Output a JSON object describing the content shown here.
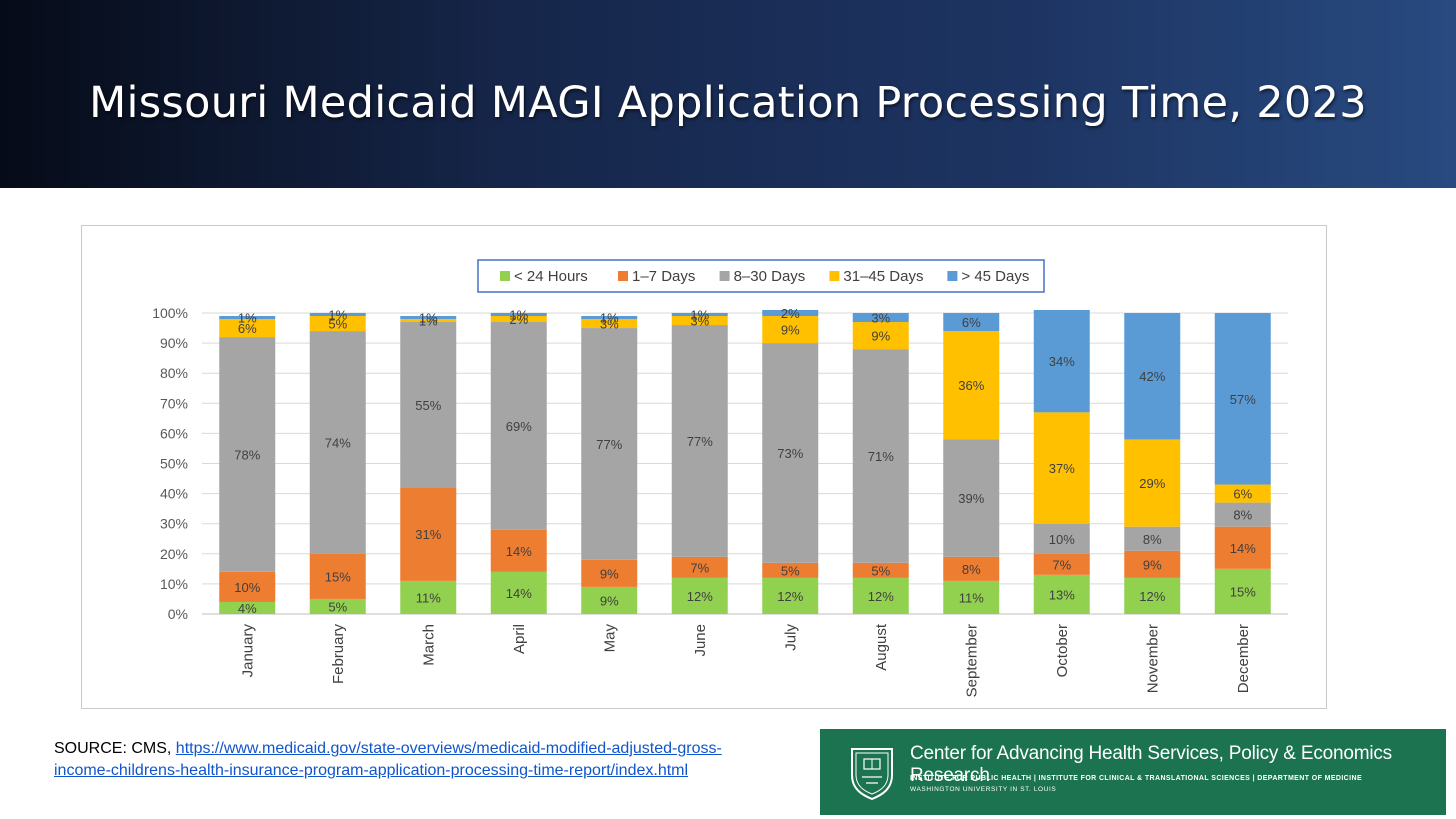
{
  "slide": {
    "title": "Missouri Medicaid MAGI Application Processing Time, 2023",
    "source_prefix": "SOURCE: CMS, ",
    "source_link_line1": "https://www.medicaid.gov/state-overviews/medicaid-modified-adjusted-gross-",
    "source_link_line2": "income-childrens-health-insurance-program-application-processing-time-report/index.html"
  },
  "logo": {
    "name": "Center for Advancing Health Services, Policy & Economics Research",
    "affiliations": "INSTITUTE FOR PUBLIC HEALTH | INSTITUTE FOR CLINICAL & TRANSLATIONAL SCIENCES | DEPARTMENT OF MEDICINE",
    "university": "WASHINGTON UNIVERSITY IN ST. LOUIS",
    "icon": "university-seal-icon"
  },
  "colors": {
    "banner": "#1d3462",
    "logo_bg": "#1b7350"
  },
  "chart_data": {
    "type": "bar",
    "stacked": true,
    "categories": [
      "January",
      "February",
      "March",
      "April",
      "May",
      "June",
      "July",
      "August",
      "September",
      "October",
      "November",
      "December"
    ],
    "series": [
      {
        "name": "< 24 Hours",
        "color": "#92d050",
        "values": [
          4,
          5,
          11,
          14,
          9,
          12,
          12,
          12,
          11,
          13,
          12,
          15
        ]
      },
      {
        "name": "1–7 Days",
        "color": "#ed7d31",
        "values": [
          10,
          15,
          31,
          14,
          9,
          7,
          5,
          5,
          8,
          7,
          9,
          14
        ]
      },
      {
        "name": "8–30 Days",
        "color": "#a5a5a5",
        "values": [
          78,
          74,
          55,
          69,
          77,
          77,
          73,
          71,
          39,
          10,
          8,
          8
        ]
      },
      {
        "name": "31–45 Days",
        "color": "#ffc000",
        "values": [
          6,
          5,
          1,
          2,
          3,
          3,
          9,
          9,
          36,
          37,
          29,
          6
        ]
      },
      {
        "name": "> 45 Days",
        "color": "#5b9bd5",
        "values": [
          1,
          1,
          1,
          1,
          1,
          1,
          2,
          3,
          6,
          34,
          42,
          57
        ]
      }
    ],
    "yticks": [
      "0%",
      "10%",
      "20%",
      "30%",
      "40%",
      "50%",
      "60%",
      "70%",
      "80%",
      "90%",
      "100%"
    ],
    "ylim": [
      0,
      100
    ],
    "legend_position": "top-center",
    "grid": true
  }
}
